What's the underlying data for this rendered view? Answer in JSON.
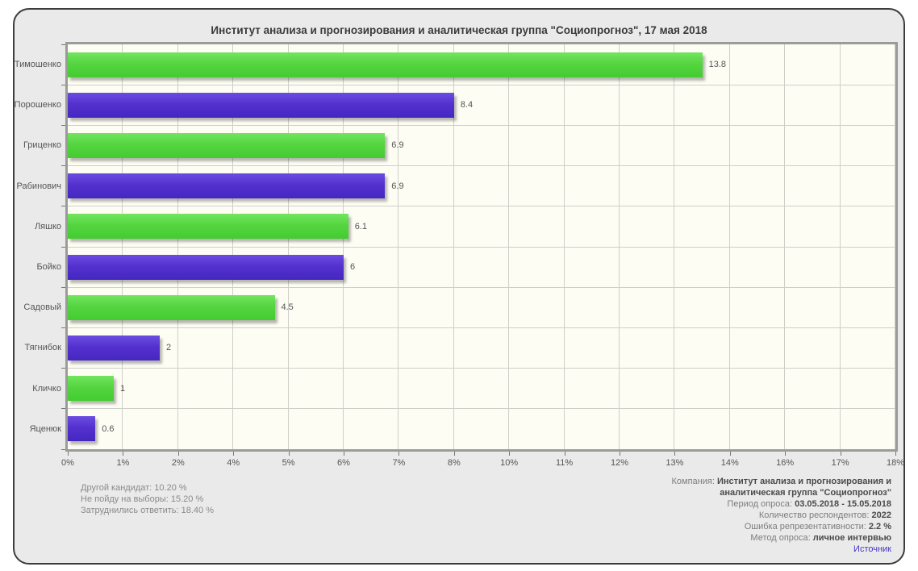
{
  "chart_data": {
    "type": "bar",
    "orientation": "horizontal",
    "title": "Институт анализа и прогнозирования и аналитическая группа \"Социопрогноз\", 17 мая 2018",
    "categories": [
      "Тимошенко",
      "Порошенко",
      "Гриценко",
      "Рабинович",
      "Ляшко",
      "Бойко",
      "Садовый",
      "Тягнибок",
      "Кличко",
      "Яценюк"
    ],
    "values": [
      13.8,
      8.4,
      6.9,
      6.9,
      6.1,
      6,
      4.5,
      2,
      1,
      0.6
    ],
    "value_labels": [
      "13.8",
      "8.4",
      "6.9",
      "6.9",
      "6.1",
      "6",
      "4.5",
      "2",
      "1",
      "0.6"
    ],
    "xlim": [
      0,
      18
    ],
    "x_tick_labels": [
      "0%",
      "1%",
      "2%",
      "4%",
      "5%",
      "6%",
      "7%",
      "8%",
      "10%",
      "11%",
      "12%",
      "13%",
      "14%",
      "16%",
      "17%",
      "18%"
    ],
    "grid": true,
    "legend": "none",
    "series_colors": [
      {
        "name": "green",
        "top": "#72e55f",
        "base": "#55d540",
        "bottom": "#44cc31"
      },
      {
        "name": "purple",
        "top": "#6b4de2",
        "base": "#5431cf",
        "bottom": "#4527c0"
      }
    ]
  },
  "footnotes": [
    "Другой кандидат: 10.20 %",
    "Не пойду на выборы: 15.20 %",
    "Затруднились ответить: 18.40 %"
  ],
  "survey_meta": {
    "items": [
      {
        "label": "Компания: ",
        "value": "Институт анализа и прогнозирования и\nаналитическая группа \"Социопрогноз\""
      },
      {
        "label": "Период опроса: ",
        "value": "03.05.2018 - 15.05.2018"
      },
      {
        "label": "Количество респондентов: ",
        "value": "2022"
      },
      {
        "label": "Ошибка репрезентативности: ",
        "value": "2.2 %"
      },
      {
        "label": "Метод опроса: ",
        "value": "личное интервью"
      }
    ],
    "source_link": "Источник"
  },
  "colors": {
    "page_bg": "#ffffff",
    "panel_bg": "#eaeaea",
    "panel_border": "#3c3c3c",
    "plot_bg": "#fdfdf4",
    "plot_border": "#9b9b99",
    "gridline": "#cfcfca",
    "tick": "#777777",
    "title_text": "#3a3a3a",
    "axis_text": "#555555",
    "footnote_text": "#8a8a8a",
    "link_text": "#4438c8",
    "bar_green": "#55d540",
    "bar_purple": "#5431cf"
  }
}
